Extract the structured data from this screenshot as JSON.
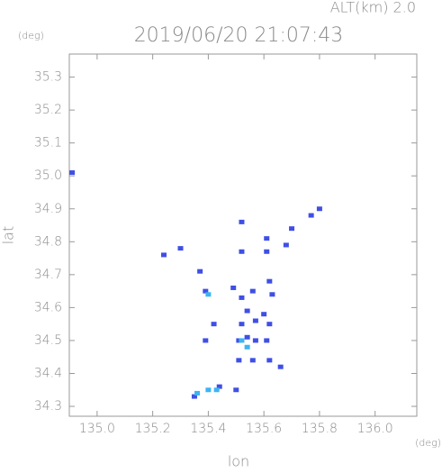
{
  "chart_data": {
    "type": "scatter",
    "title": "2019/06/20 21:07:43",
    "altitude_label": "ALT(km) 2.0",
    "y_unit": "(deg)",
    "x_unit": "(deg)",
    "xlabel": "lon",
    "ylabel": "lat",
    "xlim": [
      134.9,
      136.15
    ],
    "ylim": [
      34.27,
      35.37
    ],
    "xticks": [
      {
        "value": 135,
        "label": "135.0"
      },
      135.2,
      135.4,
      135.6,
      135.8,
      {
        "value": 136,
        "label": "136.0"
      }
    ],
    "yticks": [
      34.3,
      34.4,
      34.5,
      34.6,
      34.7,
      34.8,
      34.9,
      {
        "value": 35,
        "label": "35.0"
      },
      35.1,
      35.2,
      35.3
    ],
    "series": [
      {
        "color": "#3f4fe6",
        "x": [
          134.91,
          135.24,
          135.3,
          135.37,
          135.39,
          135.52,
          135.52,
          135.61,
          135.61,
          135.68,
          135.7,
          135.77,
          135.8,
          135.49,
          135.52,
          135.56,
          135.62,
          135.63,
          135.54,
          135.52,
          135.57,
          135.6,
          135.62,
          135.54,
          135.51,
          135.57,
          135.61,
          135.39,
          135.42,
          135.51,
          135.56,
          135.62,
          135.66,
          135.35,
          135.44,
          135.5
        ],
        "values": [
          35.01,
          34.76,
          34.78,
          34.71,
          34.65,
          34.77,
          34.86,
          34.81,
          34.77,
          34.79,
          34.84,
          34.88,
          34.9,
          34.66,
          34.63,
          34.65,
          34.68,
          34.64,
          34.59,
          34.55,
          34.56,
          34.58,
          34.55,
          34.51,
          34.5,
          34.5,
          34.5,
          34.5,
          34.55,
          34.44,
          34.44,
          34.44,
          34.42,
          34.33,
          34.36,
          34.35
        ]
      },
      {
        "color": "#3cb4f2",
        "x": [
          135.4,
          135.52,
          135.54,
          135.4,
          135.43,
          135.36
        ],
        "values": [
          34.64,
          34.5,
          34.48,
          34.35,
          34.35,
          34.34
        ]
      }
    ]
  }
}
